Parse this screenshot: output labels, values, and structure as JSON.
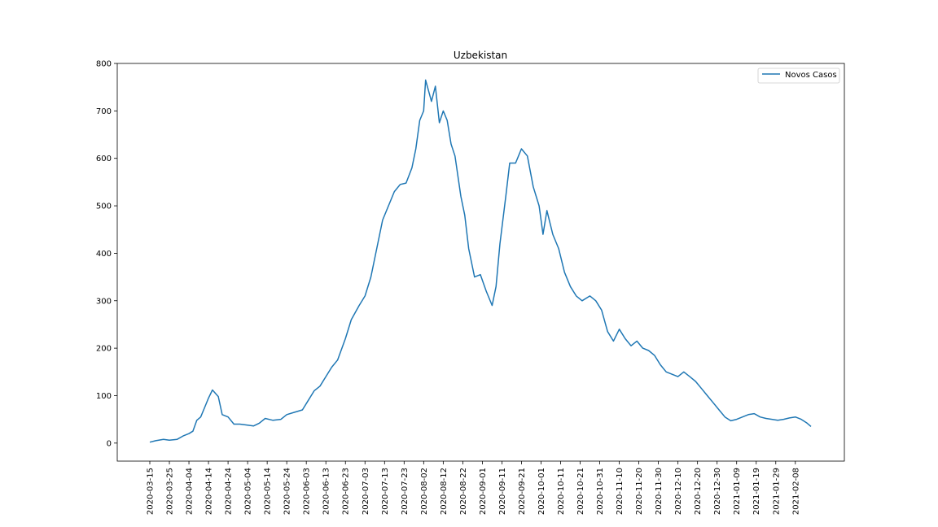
{
  "chart_data": {
    "type": "line",
    "title": "Uzbekistan",
    "xlabel": "",
    "ylabel": "",
    "x_start": "2020-03-15",
    "x_end": "2021-02-16",
    "x_tick_labels": [
      "2020-03-15",
      "2020-03-25",
      "2020-04-04",
      "2020-04-14",
      "2020-04-24",
      "2020-05-04",
      "2020-05-14",
      "2020-05-24",
      "2020-06-03",
      "2020-06-13",
      "2020-06-23",
      "2020-07-03",
      "2020-07-13",
      "2020-07-23",
      "2020-08-02",
      "2020-08-12",
      "2020-08-22",
      "2020-09-01",
      "2020-09-11",
      "2020-09-21",
      "2020-10-01",
      "2020-10-11",
      "2020-10-21",
      "2020-10-31",
      "2020-11-10",
      "2020-11-20",
      "2020-11-30",
      "2020-12-10",
      "2020-12-20",
      "2020-12-30",
      "2021-01-09",
      "2021-01-19",
      "2021-01-29",
      "2021-02-08"
    ],
    "y_ticks": [
      0,
      100,
      200,
      300,
      400,
      500,
      600,
      700,
      800
    ],
    "ylim": [
      -38,
      800
    ],
    "grid": false,
    "legend_position": "top-right",
    "color": "#1f77b4",
    "series": [
      {
        "name": "Novos Casos",
        "points": [
          [
            "2020-03-15",
            2
          ],
          [
            "2020-03-18",
            5
          ],
          [
            "2020-03-22",
            8
          ],
          [
            "2020-03-25",
            6
          ],
          [
            "2020-03-29",
            8
          ],
          [
            "2020-04-01",
            15
          ],
          [
            "2020-04-04",
            20
          ],
          [
            "2020-04-06",
            25
          ],
          [
            "2020-04-08",
            48
          ],
          [
            "2020-04-10",
            55
          ],
          [
            "2020-04-12",
            75
          ],
          [
            "2020-04-14",
            95
          ],
          [
            "2020-04-16",
            112
          ],
          [
            "2020-04-19",
            98
          ],
          [
            "2020-04-21",
            60
          ],
          [
            "2020-04-24",
            55
          ],
          [
            "2020-04-27",
            40
          ],
          [
            "2020-04-30",
            40
          ],
          [
            "2020-05-04",
            38
          ],
          [
            "2020-05-07",
            36
          ],
          [
            "2020-05-10",
            42
          ],
          [
            "2020-05-13",
            52
          ],
          [
            "2020-05-17",
            48
          ],
          [
            "2020-05-21",
            50
          ],
          [
            "2020-05-24",
            60
          ],
          [
            "2020-05-28",
            65
          ],
          [
            "2020-06-01",
            70
          ],
          [
            "2020-06-04",
            90
          ],
          [
            "2020-06-07",
            110
          ],
          [
            "2020-06-10",
            120
          ],
          [
            "2020-06-13",
            140
          ],
          [
            "2020-06-16",
            160
          ],
          [
            "2020-06-19",
            175
          ],
          [
            "2020-06-23",
            220
          ],
          [
            "2020-06-26",
            260
          ],
          [
            "2020-06-30",
            290
          ],
          [
            "2020-07-03",
            310
          ],
          [
            "2020-07-06",
            350
          ],
          [
            "2020-07-09",
            410
          ],
          [
            "2020-07-12",
            470
          ],
          [
            "2020-07-15",
            500
          ],
          [
            "2020-07-18",
            530
          ],
          [
            "2020-07-21",
            545
          ],
          [
            "2020-07-24",
            548
          ],
          [
            "2020-07-27",
            580
          ],
          [
            "2020-07-29",
            620
          ],
          [
            "2020-07-31",
            680
          ],
          [
            "2020-08-02",
            700
          ],
          [
            "2020-08-03",
            765
          ],
          [
            "2020-08-06",
            720
          ],
          [
            "2020-08-08",
            752
          ],
          [
            "2020-08-10",
            675
          ],
          [
            "2020-08-12",
            700
          ],
          [
            "2020-08-14",
            680
          ],
          [
            "2020-08-16",
            630
          ],
          [
            "2020-08-18",
            605
          ],
          [
            "2020-08-21",
            520
          ],
          [
            "2020-08-23",
            480
          ],
          [
            "2020-08-25",
            410
          ],
          [
            "2020-08-28",
            350
          ],
          [
            "2020-08-31",
            355
          ],
          [
            "2020-09-03",
            320
          ],
          [
            "2020-09-06",
            290
          ],
          [
            "2020-09-08",
            330
          ],
          [
            "2020-09-10",
            420
          ],
          [
            "2020-09-13",
            520
          ],
          [
            "2020-09-15",
            590
          ],
          [
            "2020-09-18",
            590
          ],
          [
            "2020-09-21",
            620
          ],
          [
            "2020-09-24",
            605
          ],
          [
            "2020-09-27",
            540
          ],
          [
            "2020-09-30",
            500
          ],
          [
            "2020-10-02",
            440
          ],
          [
            "2020-10-04",
            490
          ],
          [
            "2020-10-07",
            440
          ],
          [
            "2020-10-10",
            410
          ],
          [
            "2020-10-13",
            360
          ],
          [
            "2020-10-16",
            330
          ],
          [
            "2020-10-19",
            310
          ],
          [
            "2020-10-22",
            300
          ],
          [
            "2020-10-26",
            310
          ],
          [
            "2020-10-29",
            300
          ],
          [
            "2020-11-01",
            280
          ],
          [
            "2020-11-04",
            235
          ],
          [
            "2020-11-07",
            215
          ],
          [
            "2020-11-10",
            240
          ],
          [
            "2020-11-13",
            220
          ],
          [
            "2020-11-16",
            205
          ],
          [
            "2020-11-19",
            215
          ],
          [
            "2020-11-22",
            200
          ],
          [
            "2020-11-25",
            195
          ],
          [
            "2020-11-28",
            185
          ],
          [
            "2020-12-01",
            165
          ],
          [
            "2020-12-04",
            150
          ],
          [
            "2020-12-07",
            145
          ],
          [
            "2020-12-10",
            140
          ],
          [
            "2020-12-13",
            150
          ],
          [
            "2020-12-16",
            140
          ],
          [
            "2020-12-19",
            130
          ],
          [
            "2020-12-22",
            115
          ],
          [
            "2020-12-25",
            100
          ],
          [
            "2020-12-28",
            85
          ],
          [
            "2020-12-31",
            70
          ],
          [
            "2021-01-03",
            55
          ],
          [
            "2021-01-06",
            47
          ],
          [
            "2021-01-09",
            50
          ],
          [
            "2021-01-12",
            55
          ],
          [
            "2021-01-15",
            60
          ],
          [
            "2021-01-18",
            62
          ],
          [
            "2021-01-21",
            55
          ],
          [
            "2021-01-24",
            52
          ],
          [
            "2021-01-27",
            50
          ],
          [
            "2021-01-30",
            48
          ],
          [
            "2021-02-02",
            50
          ],
          [
            "2021-02-05",
            53
          ],
          [
            "2021-02-08",
            55
          ],
          [
            "2021-02-11",
            50
          ],
          [
            "2021-02-14",
            42
          ],
          [
            "2021-02-16",
            35
          ]
        ]
      }
    ]
  }
}
